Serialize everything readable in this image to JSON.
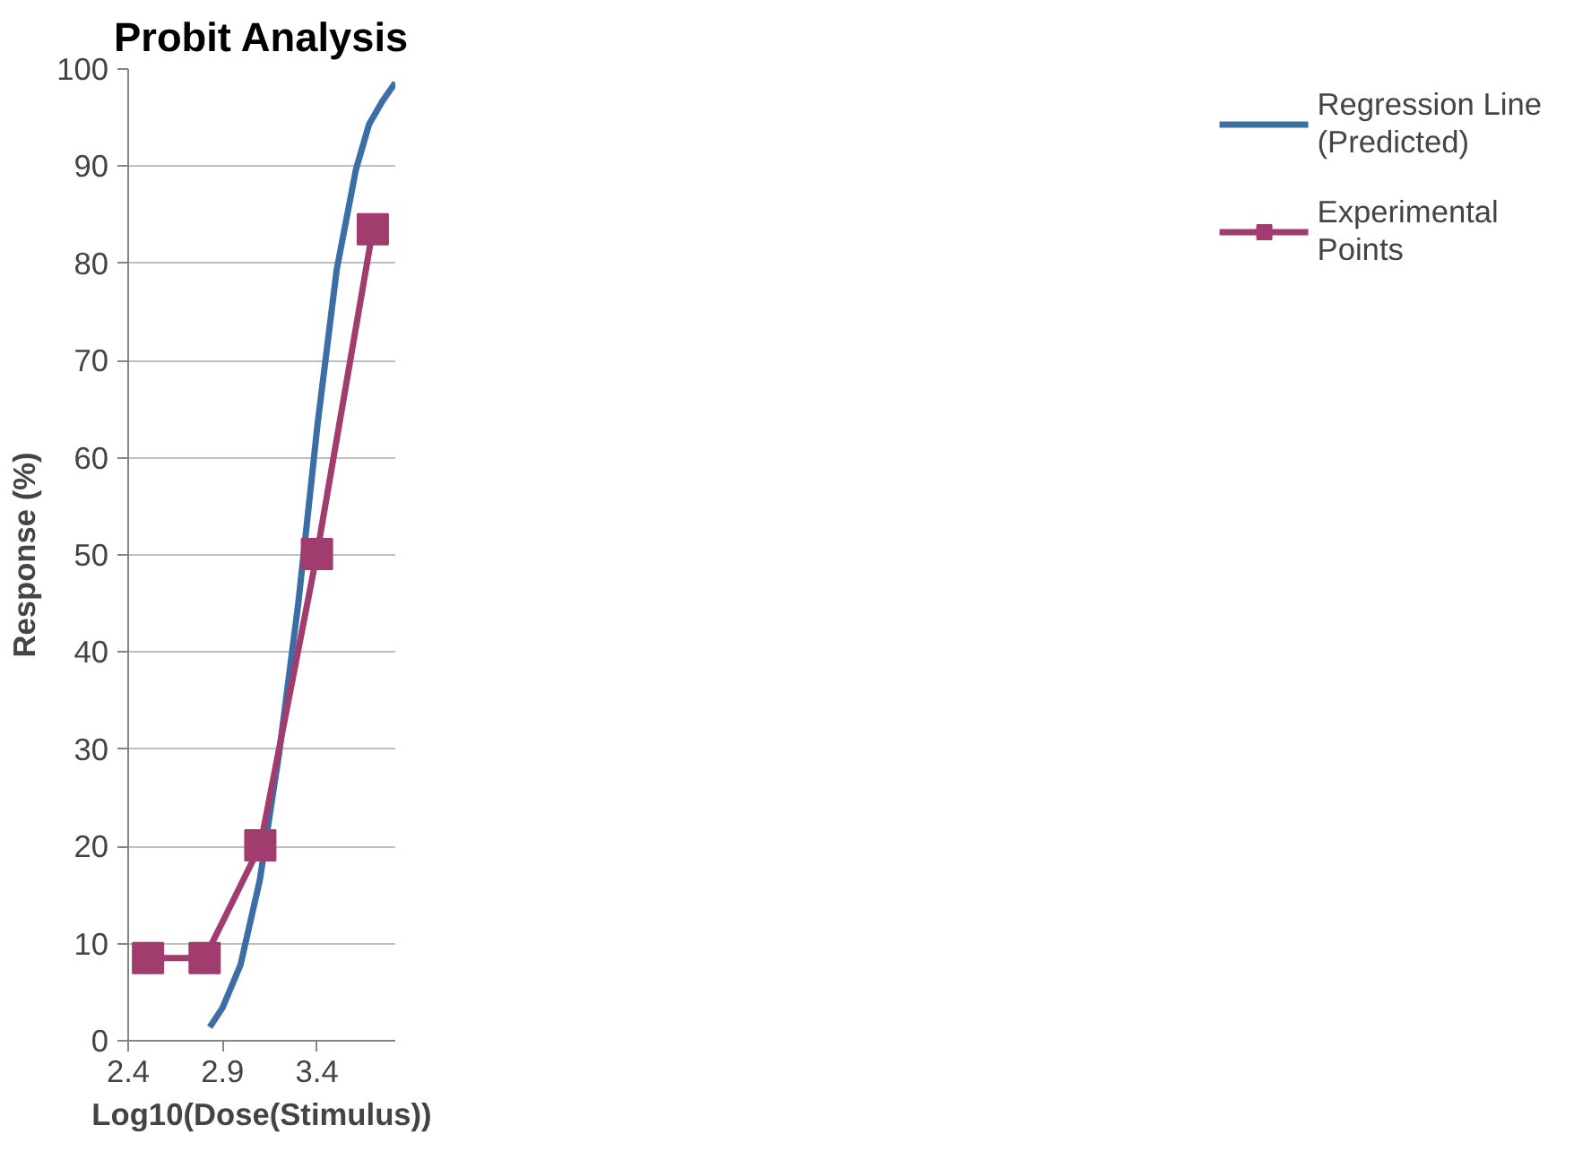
{
  "chart_data": {
    "type": "line",
    "title": "Probit Analysis",
    "xlabel": "Log10(Dose(Stimulus))",
    "ylabel": "Response (%)",
    "xlim": [
      2.4,
      3.815
    ],
    "xticks": [
      2.4,
      2.9,
      3.4
    ],
    "ylim": [
      0,
      100
    ],
    "yticks": [
      0,
      10,
      20,
      30,
      40,
      50,
      60,
      70,
      80,
      90,
      100
    ],
    "grid": "y",
    "legend": "right",
    "series": [
      {
        "name": "Regression Line (Predicted)",
        "color": "#3a6ea5",
        "marker": "none",
        "x": [
          2.832,
          2.9,
          2.995,
          3.097,
          3.199,
          3.301,
          3.403,
          3.505,
          3.607,
          3.676,
          3.744,
          3.815
        ],
        "values": [
          1.4,
          3.4,
          7.8,
          16.5,
          29.5,
          45,
          63.4,
          79.4,
          89.7,
          94.3,
          96.6,
          98.6
        ]
      },
      {
        "name": "Experimental Points",
        "color": "#a03c6e",
        "marker": "square",
        "x": [
          2.505,
          2.805,
          3.1,
          3.4,
          3.696
        ],
        "values": [
          8.5,
          8.5,
          20.1,
          50.1,
          83.5
        ]
      }
    ]
  }
}
